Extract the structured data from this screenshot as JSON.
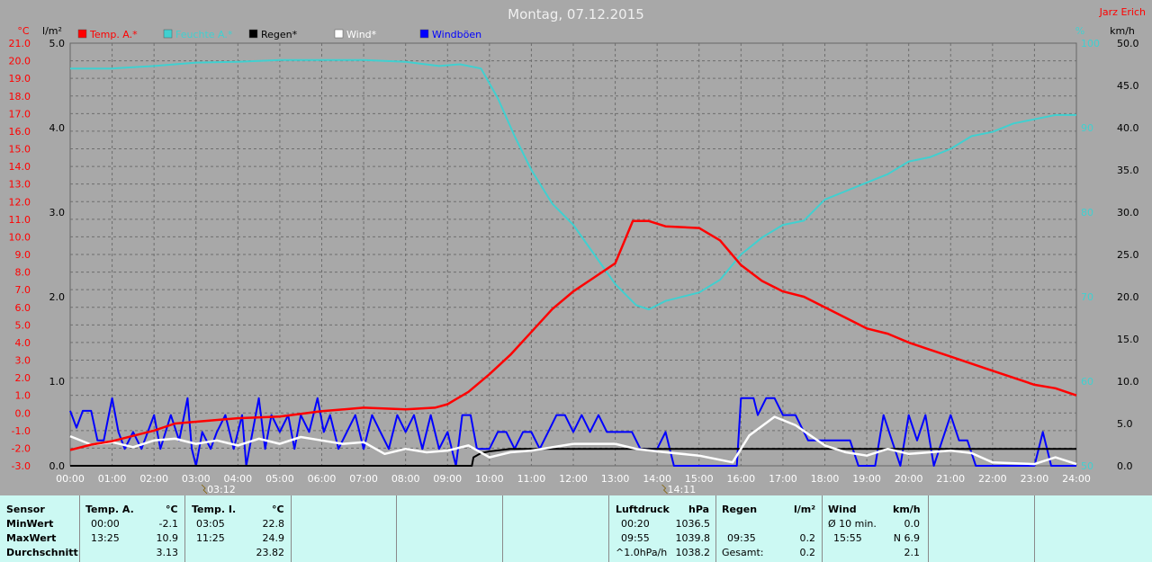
{
  "title": "Montag, 07.12.2015",
  "author": "Jarz Erich",
  "colors": {
    "background": "#a8a8a8",
    "temp": "#ff0000",
    "humidity": "#40d0d0",
    "rain": "#000000",
    "wind": "#ffffff",
    "gust": "#0000ff",
    "panel": "#ccf9f3"
  },
  "chart_data": {
    "type": "line",
    "title": "Montag, 07.12.2015",
    "xlabel": "",
    "x_ticks": [
      "00:00",
      "01:00",
      "02:00",
      "03:00",
      "04:00",
      "05:00",
      "06:00",
      "07:00",
      "08:00",
      "09:00",
      "10:00",
      "11:00",
      "12:00",
      "13:00",
      "14:00",
      "15:00",
      "16:00",
      "17:00",
      "18:00",
      "19:00",
      "20:00",
      "21:00",
      "22:00",
      "23:00",
      "24:00"
    ],
    "x_range_hours": [
      0,
      24
    ],
    "axes": {
      "temp": {
        "unit": "°C",
        "range": [
          -3,
          21
        ],
        "ticks": [
          "21.0",
          "20.0",
          "19.0",
          "18.0",
          "17.0",
          "16.0",
          "15.0",
          "14.0",
          "13.0",
          "12.0",
          "11.0",
          "10.0",
          "9.0",
          "8.0",
          "7.0",
          "6.0",
          "5.0",
          "4.0",
          "3.0",
          "2.0",
          "1.0",
          "0.0",
          "-1.0",
          "-2.0",
          "-3.0"
        ]
      },
      "rain": {
        "unit": "l/m²",
        "range": [
          0,
          5
        ],
        "ticks": [
          "5.0",
          "4.0",
          "3.0",
          "2.0",
          "1.0",
          "0.0"
        ]
      },
      "humidity": {
        "unit": "%",
        "range": [
          50,
          100
        ],
        "ticks": [
          "100",
          "90",
          "80",
          "70",
          "60",
          "50"
        ]
      },
      "wind": {
        "unit": "km/h",
        "range": [
          0,
          50
        ],
        "ticks": [
          "50.0",
          "45.0",
          "40.0",
          "35.0",
          "30.0",
          "25.0",
          "20.0",
          "15.0",
          "10.0",
          "5.0",
          "0.0"
        ]
      }
    },
    "grid": true,
    "legend": [
      {
        "name": "Temp. A.*",
        "color": "#ff0000"
      },
      {
        "name": "Feuchte A.*",
        "color": "#40d0d0"
      },
      {
        "name": "Regen*",
        "color": "#000000"
      },
      {
        "name": "Wind*",
        "color": "#ffffff"
      },
      {
        "name": "Windböen",
        "color": "#0000ff"
      }
    ],
    "markers": [
      {
        "label": "03:12",
        "hour": 3.2
      },
      {
        "label": "14:11",
        "hour": 14.18
      }
    ],
    "series": [
      {
        "name": "Temp. A.*",
        "axis": "temp",
        "points": [
          [
            0,
            -2.1
          ],
          [
            0.5,
            -1.8
          ],
          [
            1,
            -1.6
          ],
          [
            2,
            -1.0
          ],
          [
            2.5,
            -0.6
          ],
          [
            3,
            -0.5
          ],
          [
            4,
            -0.3
          ],
          [
            5,
            -0.2
          ],
          [
            6,
            0.1
          ],
          [
            7,
            0.3
          ],
          [
            8,
            0.2
          ],
          [
            8.7,
            0.3
          ],
          [
            9,
            0.5
          ],
          [
            9.5,
            1.2
          ],
          [
            10,
            2.2
          ],
          [
            10.5,
            3.3
          ],
          [
            11,
            4.6
          ],
          [
            11.5,
            5.9
          ],
          [
            12,
            6.9
          ],
          [
            12.5,
            7.7
          ],
          [
            13,
            8.5
          ],
          [
            13.42,
            10.9
          ],
          [
            13.8,
            10.9
          ],
          [
            14.2,
            10.6
          ],
          [
            15,
            10.5
          ],
          [
            15.5,
            9.8
          ],
          [
            16,
            8.4
          ],
          [
            16.5,
            7.5
          ],
          [
            17,
            6.9
          ],
          [
            17.5,
            6.6
          ],
          [
            18,
            6.0
          ],
          [
            18.5,
            5.4
          ],
          [
            19,
            4.8
          ],
          [
            19.5,
            4.5
          ],
          [
            20,
            4.0
          ],
          [
            20.5,
            3.6
          ],
          [
            21,
            3.2
          ],
          [
            21.5,
            2.8
          ],
          [
            22,
            2.4
          ],
          [
            22.5,
            2.0
          ],
          [
            23,
            1.6
          ],
          [
            23.5,
            1.4
          ],
          [
            24,
            1.0
          ]
        ]
      },
      {
        "name": "Feuchte A.*",
        "axis": "humidity",
        "points": [
          [
            0,
            97
          ],
          [
            1,
            97
          ],
          [
            2,
            97.3
          ],
          [
            3,
            97.7
          ],
          [
            4,
            97.8
          ],
          [
            5,
            98
          ],
          [
            6,
            98
          ],
          [
            7,
            98
          ],
          [
            8,
            97.8
          ],
          [
            8.8,
            97.3
          ],
          [
            9.3,
            97.5
          ],
          [
            9.8,
            97
          ],
          [
            10.2,
            93.5
          ],
          [
            10.6,
            89
          ],
          [
            11,
            85
          ],
          [
            11.5,
            81
          ],
          [
            12,
            78.5
          ],
          [
            12.5,
            75
          ],
          [
            13,
            71.5
          ],
          [
            13.5,
            69
          ],
          [
            13.8,
            68.5
          ],
          [
            14.2,
            69.5
          ],
          [
            15,
            70.5
          ],
          [
            15.5,
            72
          ],
          [
            16,
            75
          ],
          [
            16.5,
            77
          ],
          [
            17,
            78.5
          ],
          [
            17.5,
            79
          ],
          [
            18,
            81.5
          ],
          [
            18.5,
            82.5
          ],
          [
            19,
            83.5
          ],
          [
            19.5,
            84.5
          ],
          [
            20,
            86
          ],
          [
            20.5,
            86.5
          ],
          [
            21,
            87.5
          ],
          [
            21.5,
            89
          ],
          [
            22,
            89.5
          ],
          [
            22.5,
            90.5
          ],
          [
            23,
            91
          ],
          [
            23.5,
            91.5
          ],
          [
            24,
            91.5
          ]
        ]
      },
      {
        "name": "Regen*",
        "axis": "rain",
        "points": [
          [
            0,
            0
          ],
          [
            9.58,
            0
          ],
          [
            9.62,
            0.1
          ],
          [
            9.8,
            0.15
          ],
          [
            10,
            0.17
          ],
          [
            10.5,
            0.2
          ],
          [
            24,
            0.2
          ]
        ]
      },
      {
        "name": "Wind*",
        "axis": "wind",
        "points": [
          [
            0,
            3.5
          ],
          [
            0.5,
            2.5
          ],
          [
            1,
            2.8
          ],
          [
            1.5,
            2.2
          ],
          [
            2,
            3.0
          ],
          [
            2.5,
            3.2
          ],
          [
            3,
            2.6
          ],
          [
            3.5,
            3.0
          ],
          [
            4,
            2.4
          ],
          [
            4.5,
            3.2
          ],
          [
            5,
            2.6
          ],
          [
            5.5,
            3.4
          ],
          [
            6,
            3.0
          ],
          [
            6.5,
            2.6
          ],
          [
            7,
            2.8
          ],
          [
            7.5,
            1.4
          ],
          [
            8,
            2.0
          ],
          [
            8.5,
            1.6
          ],
          [
            9,
            1.8
          ],
          [
            9.5,
            2.4
          ],
          [
            10,
            1.0
          ],
          [
            10.5,
            1.6
          ],
          [
            11,
            1.8
          ],
          [
            12,
            2.6
          ],
          [
            13,
            2.6
          ],
          [
            13.5,
            2.0
          ],
          [
            14,
            1.7
          ],
          [
            15,
            1.2
          ],
          [
            15.8,
            0.4
          ],
          [
            16.2,
            3.6
          ],
          [
            16.8,
            5.8
          ],
          [
            17.3,
            4.8
          ],
          [
            18,
            2.4
          ],
          [
            18.5,
            1.6
          ],
          [
            19,
            1.2
          ],
          [
            19.5,
            2.0
          ],
          [
            20,
            1.4
          ],
          [
            20.5,
            1.6
          ],
          [
            21,
            1.8
          ],
          [
            21.5,
            1.5
          ],
          [
            22,
            0.4
          ],
          [
            23,
            0.2
          ],
          [
            23.5,
            1.0
          ],
          [
            24,
            0.2
          ]
        ]
      },
      {
        "name": "Windböen",
        "axis": "wind",
        "points": [
          [
            0,
            6.5
          ],
          [
            0.15,
            4.5
          ],
          [
            0.3,
            6.5
          ],
          [
            0.5,
            6.5
          ],
          [
            0.65,
            3
          ],
          [
            0.8,
            3
          ],
          [
            1,
            8
          ],
          [
            1.15,
            4
          ],
          [
            1.3,
            2
          ],
          [
            1.5,
            4
          ],
          [
            1.7,
            2
          ],
          [
            2,
            6
          ],
          [
            2.15,
            2
          ],
          [
            2.4,
            6
          ],
          [
            2.6,
            3
          ],
          [
            2.8,
            8
          ],
          [
            2.9,
            2
          ],
          [
            3,
            0
          ],
          [
            3.15,
            4
          ],
          [
            3.35,
            2
          ],
          [
            3.5,
            4
          ],
          [
            3.7,
            6
          ],
          [
            3.9,
            2
          ],
          [
            4.1,
            6
          ],
          [
            4.2,
            0
          ],
          [
            4.35,
            4
          ],
          [
            4.5,
            8
          ],
          [
            4.65,
            2
          ],
          [
            4.8,
            6
          ],
          [
            5,
            4
          ],
          [
            5.2,
            6
          ],
          [
            5.35,
            2
          ],
          [
            5.5,
            6
          ],
          [
            5.7,
            4
          ],
          [
            5.9,
            8
          ],
          [
            6.05,
            4
          ],
          [
            6.2,
            6
          ],
          [
            6.4,
            2
          ],
          [
            6.6,
            4
          ],
          [
            6.8,
            6
          ],
          [
            7,
            2
          ],
          [
            7.2,
            6
          ],
          [
            7.4,
            4
          ],
          [
            7.6,
            2
          ],
          [
            7.8,
            6
          ],
          [
            8,
            4
          ],
          [
            8.2,
            6
          ],
          [
            8.4,
            2
          ],
          [
            8.6,
            6
          ],
          [
            8.8,
            2
          ],
          [
            9,
            4
          ],
          [
            9.2,
            0
          ],
          [
            9.35,
            6
          ],
          [
            9.55,
            6
          ],
          [
            9.7,
            2
          ],
          [
            10,
            2
          ],
          [
            10.2,
            4
          ],
          [
            10.4,
            4
          ],
          [
            10.6,
            2
          ],
          [
            10.8,
            4
          ],
          [
            11,
            4
          ],
          [
            11.2,
            2
          ],
          [
            11.4,
            4
          ],
          [
            11.6,
            6
          ],
          [
            11.8,
            6
          ],
          [
            12,
            4
          ],
          [
            12.2,
            6
          ],
          [
            12.4,
            4
          ],
          [
            12.6,
            6
          ],
          [
            12.8,
            4
          ],
          [
            13.4,
            4
          ],
          [
            13.6,
            2
          ],
          [
            14,
            2
          ],
          [
            14.2,
            4
          ],
          [
            14.4,
            0
          ],
          [
            15.9,
            0
          ],
          [
            16,
            8
          ],
          [
            16.3,
            8
          ],
          [
            16.4,
            6
          ],
          [
            16.6,
            8
          ],
          [
            16.8,
            8
          ],
          [
            17,
            6
          ],
          [
            17.3,
            6
          ],
          [
            17.6,
            3
          ],
          [
            18,
            3
          ],
          [
            18.6,
            3
          ],
          [
            18.8,
            0
          ],
          [
            19.2,
            0
          ],
          [
            19.4,
            6
          ],
          [
            19.6,
            3
          ],
          [
            19.8,
            0
          ],
          [
            20,
            6
          ],
          [
            20.2,
            3
          ],
          [
            20.4,
            6
          ],
          [
            20.6,
            0
          ],
          [
            20.8,
            3
          ],
          [
            21,
            6
          ],
          [
            21.2,
            3
          ],
          [
            21.4,
            3
          ],
          [
            21.6,
            0
          ],
          [
            23,
            0
          ],
          [
            23.2,
            4
          ],
          [
            23.4,
            0
          ],
          [
            24,
            0
          ]
        ]
      }
    ]
  },
  "panel": {
    "sensor": {
      "header": "Sensor",
      "rows": [
        "MinWert",
        "MaxWert",
        "Durchschnitt"
      ]
    },
    "temp_a": {
      "header": "Temp. A.",
      "unit": "°C",
      "min_time": "00:00",
      "min_val": "-2.1",
      "max_time": "13:25",
      "max_val": "10.9",
      "avg_val": "3.13"
    },
    "temp_i": {
      "header": "Temp. I.",
      "unit": "°C",
      "min_time": "03:05",
      "min_val": "22.8",
      "max_time": "11:25",
      "max_val": "24.9",
      "avg_val": "23.82"
    },
    "pressure": {
      "header": "Luftdruck",
      "unit": "hPa",
      "min_time": "00:20",
      "min_val": "1036.5",
      "max_time": "09:55",
      "max_val": "1039.8",
      "trend_label": "^1.0hPa/h",
      "trend_val": "1038.2"
    },
    "rain": {
      "header": "Regen",
      "unit": "l/m²",
      "row2_time": "09:35",
      "row2_val": "0.2",
      "total_label": "Gesamt:",
      "total_val": "0.2"
    },
    "wind": {
      "header": "Wind",
      "unit": "km/h",
      "avg_label": "Ø 10 min.",
      "avg_val": "0.0",
      "max_time": "15:55",
      "max_val": "N 6.9",
      "row3_val": "2.1"
    }
  }
}
